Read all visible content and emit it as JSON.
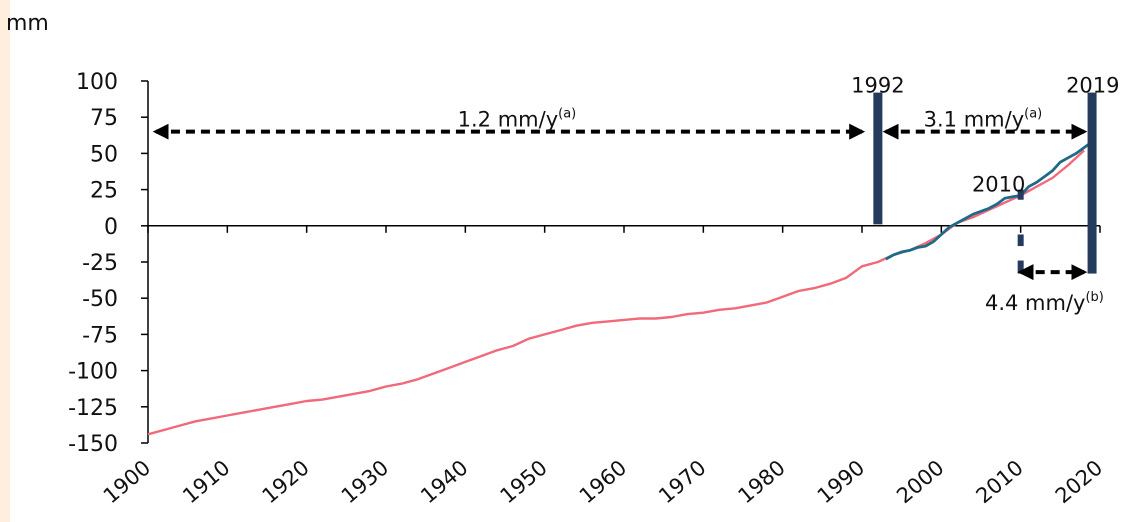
{
  "colors": {
    "left_strip": "#fdeedd",
    "series_tide_gauge": "#f06a7a",
    "series_satellite": "#1f6a86",
    "markers": "#243b5e",
    "axis": "#000000"
  },
  "chart_data": {
    "type": "line",
    "title": "",
    "ylabel": "mm",
    "xlabel": "",
    "xlim": [
      1900,
      2020
    ],
    "ylim": [
      -150,
      100
    ],
    "x_ticks": [
      "1900",
      "1910",
      "1920",
      "1930",
      "1940",
      "1950",
      "1960",
      "1970",
      "1980",
      "1990",
      "2000",
      "2010",
      "2020"
    ],
    "y_ticks": [
      "100",
      "75",
      "50",
      "25",
      "0",
      "-25",
      "-50",
      "-75",
      "-100",
      "-125",
      "-150"
    ],
    "grid": false,
    "legend": "none",
    "series": [
      {
        "x": [
          1900,
          1902,
          1904,
          1906,
          1908,
          1910,
          1912,
          1914,
          1916,
          1918,
          1920,
          1922,
          1924,
          1926,
          1928,
          1930,
          1932,
          1934,
          1936,
          1938,
          1940,
          1942,
          1944,
          1946,
          1948,
          1950,
          1952,
          1954,
          1956,
          1958,
          1960,
          1962,
          1964,
          1966,
          1968,
          1970,
          1972,
          1974,
          1976,
          1978,
          1980,
          1982,
          1984,
          1986,
          1988,
          1990,
          1992,
          1994,
          1996,
          1998,
          2000,
          2002,
          2004,
          2006,
          2008,
          2010,
          2012,
          2014,
          2016,
          2018
        ],
        "y": [
          -144,
          -141,
          -138,
          -135,
          -133,
          -131,
          -129,
          -127,
          -125,
          -123,
          -121,
          -120,
          -118,
          -116,
          -114,
          -111,
          -109,
          -106,
          -102,
          -98,
          -94,
          -90,
          -86,
          -83,
          -78,
          -75,
          -72,
          -69,
          -67,
          -66,
          -65,
          -64,
          -64,
          -63,
          -61,
          -60,
          -58,
          -57,
          -55,
          -53,
          -49,
          -45,
          -43,
          -40,
          -36,
          -28,
          -25,
          -20,
          -17,
          -12,
          -6,
          2,
          6,
          11,
          16,
          21,
          27,
          33,
          42,
          52
        ]
      },
      {
        "x": [
          1993,
          1994,
          1995,
          1996,
          1997,
          1998,
          1999,
          2000,
          2001,
          2002,
          2003,
          2004,
          2005,
          2006,
          2007,
          2008,
          2009,
          2010,
          2011,
          2012,
          2013,
          2014,
          2015,
          2016,
          2017,
          2018,
          2019
        ],
        "y": [
          -23,
          -20,
          -18,
          -17,
          -15,
          -14,
          -11,
          -6,
          -1,
          2,
          5,
          8,
          10,
          12,
          15,
          19,
          20,
          21,
          27,
          30,
          34,
          38,
          44,
          47,
          50,
          54,
          58
        ]
      }
    ],
    "markers": [
      {
        "year": 1992,
        "label": "1992",
        "y_top": 92,
        "y_bottom": 1
      },
      {
        "year": 2019,
        "label": "2019",
        "y_top": 92,
        "y_bottom": -33
      },
      {
        "year": 2010,
        "label": "2010",
        "y_top": 25,
        "y_bottom": -33
      }
    ],
    "annotations": [
      {
        "text": "1.2 mm/y",
        "sup": "(a)",
        "x1": 1901,
        "x2": 1990,
        "y": 65
      },
      {
        "text": "3.1 mm/y",
        "sup": "(a)",
        "x1": 1993,
        "x2": 2018,
        "y": 65
      },
      {
        "text": "4.4 mm/y",
        "sup": "(b)",
        "x1": 2010,
        "x2": 2018,
        "y": -32
      }
    ]
  }
}
